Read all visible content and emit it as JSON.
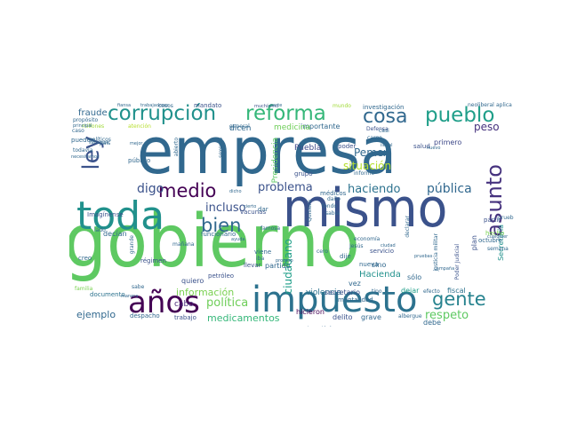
{
  "word_cloud": {
    "words": [
      {
        "text": "gobierno",
        "color": "#5ec962"
      },
      {
        "text": "empresa",
        "color": "#31688e"
      },
      {
        "text": "mismo",
        "color": "#3b528b"
      },
      {
        "text": "toda",
        "color": "#21918c"
      },
      {
        "text": "impuesto",
        "color": "#2c728e"
      },
      {
        "text": "años",
        "color": "#440154"
      },
      {
        "text": "corrupción",
        "color": "#21918c"
      },
      {
        "text": "reforma",
        "color": "#35b779"
      },
      {
        "text": "pueblo",
        "color": "#1f9e89"
      },
      {
        "text": "cosa",
        "color": "#31688e"
      },
      {
        "text": "ley",
        "color": "#3b528b"
      },
      {
        "text": "asunto",
        "color": "#46327e"
      },
      {
        "text": "gente",
        "color": "#26828e"
      },
      {
        "text": "medio",
        "color": "#440154"
      },
      {
        "text": "bien",
        "color": "#31688e"
      },
      {
        "text": "digo",
        "color": "#3b528b"
      },
      {
        "text": "problema",
        "color": "#3b528b"
      },
      {
        "text": "haciendo",
        "color": "#2c728e"
      },
      {
        "text": "pública",
        "color": "#31688e"
      },
      {
        "text": "incluso",
        "color": "#3b528b"
      },
      {
        "text": "respeto",
        "color": "#5ec962"
      },
      {
        "text": "política",
        "color": "#6ece58"
      },
      {
        "text": "medicamentos",
        "color": "#35b779"
      },
      {
        "text": "información",
        "color": "#7ad151"
      },
      {
        "text": "ejemplo",
        "color": "#31688e"
      },
      {
        "text": "ciudadano",
        "color": "#1f9e89"
      },
      {
        "text": "situación",
        "color": "#b5de2b"
      },
      {
        "text": "Pemex",
        "color": "#31688e"
      },
      {
        "text": "peso",
        "color": "#46327e"
      },
      {
        "text": "Hacienda",
        "color": "#21918c"
      },
      {
        "text": "violencia",
        "color": "#2c728e"
      },
      {
        "text": "fraude",
        "color": "#31688e"
      },
      {
        "text": "Puebla",
        "color": "#3e4989"
      },
      {
        "text": "cabo",
        "color": "#482878"
      },
      {
        "text": "incluso",
        "color": "#3b528b"
      },
      {
        "text": "quiero",
        "color": "#3b528b"
      },
      {
        "text": "hicieron",
        "color": "#440154"
      },
      {
        "text": "delito",
        "color": "#3b528b"
      },
      {
        "text": "grave",
        "color": "#31688e"
      },
      {
        "text": "debe",
        "color": "#31688e"
      },
      {
        "text": "fiscal",
        "color": "#2c728e"
      },
      {
        "text": "dejar",
        "color": "#1f9e89"
      },
      {
        "text": "secretario",
        "color": "#3b528b"
      },
      {
        "text": "partido",
        "color": "#31688e"
      },
      {
        "text": "documento",
        "color": "#2c728e"
      },
      {
        "text": "trabajo",
        "color": "#3b528b"
      },
      {
        "text": "despacho",
        "color": "#31688e"
      },
      {
        "text": "importante",
        "color": "#31688e"
      },
      {
        "text": "después",
        "color": "#6ece58"
      },
      {
        "text": "investigación",
        "color": "#31688e"
      },
      {
        "text": "primero",
        "color": "#3e4989"
      },
      {
        "text": "salud",
        "color": "#3b528b"
      },
      {
        "text": "privilegio",
        "color": "#35b779"
      },
      {
        "text": "Secretaría",
        "color": "#21918c"
      },
      {
        "text": "medicina",
        "color": "#6ece58"
      },
      {
        "text": "dicen",
        "color": "#31688e"
      },
      {
        "text": "Congreso",
        "color": "#3b528b"
      },
      {
        "text": "público",
        "color": "#31688e"
      },
      {
        "text": "Imagínense",
        "color": "#3b528b"
      },
      {
        "text": "funcionario",
        "color": "#31688e"
      },
      {
        "text": "régimen",
        "color": "#3b528b"
      },
      {
        "text": "petróleo",
        "color": "#3b528b"
      },
      {
        "text": "puedo",
        "color": "#31688e"
      },
      {
        "text": "sólo",
        "color": "#31688e"
      },
      {
        "text": "vez",
        "color": "#31688e"
      },
      {
        "text": "dije",
        "color": "#31688e"
      },
      {
        "text": "sino",
        "color": "#31688e"
      },
      {
        "text": "decían",
        "color": "#31688e"
      },
      {
        "text": "creo",
        "color": "#31688e"
      },
      {
        "text": "pueden",
        "color": "#31688e"
      },
      {
        "text": "políticos",
        "color": "#31688e"
      },
      {
        "text": "vacunas",
        "color": "#3b528b"
      },
      {
        "text": "hecho",
        "color": "#7ad151"
      },
      {
        "text": "partir",
        "color": "#3b528b"
      },
      {
        "text": "nueva",
        "color": "#31688e"
      },
      {
        "text": "prueba",
        "color": "#31688e"
      },
      {
        "text": "octubre",
        "color": "#31688e"
      },
      {
        "text": "servicio",
        "color": "#3b528b"
      },
      {
        "text": "mentalidad",
        "color": "#31688e"
      },
      {
        "text": "Presidencia",
        "color": "#5ec962"
      },
      {
        "text": "mandato",
        "color": "#3b528b"
      },
      {
        "text": "casos",
        "color": "#31688e"
      },
      {
        "text": "fiansa",
        "color": "#31688e"
      },
      {
        "text": "trabajadores",
        "color": "#31688e"
      },
      {
        "text": "muchísimo",
        "color": "#3b528b"
      },
      {
        "text": "parte",
        "color": "#31688e"
      },
      {
        "text": "neoliberal",
        "color": "#31688e"
      },
      {
        "text": "aplica",
        "color": "#31688e"
      },
      {
        "text": "grupo",
        "color": "#3b528b"
      },
      {
        "text": "Defensa",
        "color": "#3b528b"
      },
      {
        "text": "poder",
        "color": "#3b528b"
      },
      {
        "text": "sabía",
        "color": "#31688e"
      },
      {
        "text": "fondo",
        "color": "#31688e"
      },
      {
        "text": "daño",
        "color": "#31688e"
      },
      {
        "text": "dar",
        "color": "#31688e"
      },
      {
        "text": "viene",
        "color": "#31688e"
      },
      {
        "text": "iba",
        "color": "#31688e"
      },
      {
        "text": "llevar",
        "color": "#3b528b"
      },
      {
        "text": "médicos",
        "color": "#31688e"
      },
      {
        "text": "familia",
        "color": "#7ad151"
      },
      {
        "text": "sabe",
        "color": "#31688e"
      },
      {
        "text": "veces",
        "color": "#31688e"
      },
      {
        "text": "manera",
        "color": "#31688e"
      },
      {
        "text": "efecto",
        "color": "#31688e"
      },
      {
        "text": "Jesús",
        "color": "#31688e"
      },
      {
        "text": "lado",
        "color": "#31688e"
      },
      {
        "text": "caso",
        "color": "#31688e"
      },
      {
        "text": "millones",
        "color": "#a0da39"
      },
      {
        "text": "atención",
        "color": "#b5de2b"
      },
      {
        "text": "general",
        "color": "#31688e"
      },
      {
        "text": "mundo",
        "color": "#a0da39"
      },
      {
        "text": "informe",
        "color": "#31688e"
      },
      {
        "text": "economía",
        "color": "#31688e"
      },
      {
        "text": "cero",
        "color": "#31688e"
      },
      {
        "text": "proceso",
        "color": "#31688e"
      },
      {
        "text": "famosa",
        "color": "#31688e"
      },
      {
        "text": "tipo",
        "color": "#31688e"
      },
      {
        "text": "cargo",
        "color": "#31688e"
      },
      {
        "text": "casi",
        "color": "#31688e"
      },
      {
        "text": "plan",
        "color": "#3b528b"
      },
      {
        "text": "semana",
        "color": "#31688e"
      },
      {
        "text": "cualquier",
        "color": "#31688e"
      },
      {
        "text": "Poder Judicial",
        "color": "#3b528b"
      },
      {
        "text": "declarar",
        "color": "#31688e"
      },
      {
        "text": "personas",
        "color": "#b5de2b"
      },
      {
        "text": "albergue",
        "color": "#31688e"
      },
      {
        "text": "propósito",
        "color": "#31688e"
      },
      {
        "text": "principal",
        "color": "#31688e"
      },
      {
        "text": "todavía",
        "color": "#31688e"
      },
      {
        "text": "país",
        "color": "#31688e"
      },
      {
        "text": "mañana",
        "color": "#31688e"
      },
      {
        "text": "sabemos",
        "color": "#31688e"
      },
      {
        "text": "mejor",
        "color": "#31688e"
      },
      {
        "text": "ayuda",
        "color": "#31688e"
      },
      {
        "text": "grande",
        "color": "#31688e"
      },
      {
        "text": "impunidad",
        "color": "#31688e"
      },
      {
        "text": "nuevo",
        "color": "#31688e"
      },
      {
        "text": "necesitamos",
        "color": "#31688e"
      },
      {
        "text": "cierto",
        "color": "#31688e"
      },
      {
        "text": "Quisiera",
        "color": "#31688e"
      },
      {
        "text": "ilegal",
        "color": "#31688e"
      },
      {
        "text": "ciudad",
        "color": "#31688e"
      },
      {
        "text": "campaña",
        "color": "#31688e"
      },
      {
        "text": "abierto",
        "color": "#31688e"
      },
      {
        "text": "sexenio",
        "color": "#31688e"
      },
      {
        "text": "pruebas",
        "color": "#31688e"
      },
      {
        "text": "justicia militar",
        "color": "#31688e"
      },
      {
        "text": "dicho",
        "color": "#31688e"
      }
    ]
  }
}
